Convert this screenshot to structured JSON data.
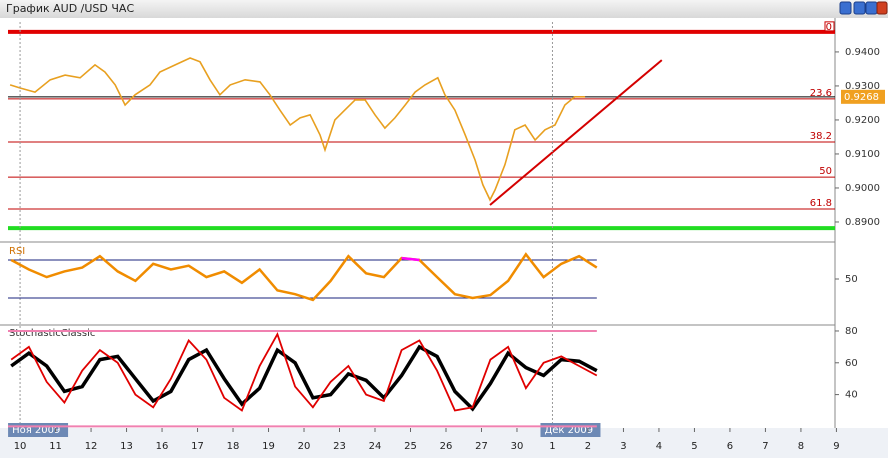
{
  "title": "График AUD /USD  ЧАС",
  "chart_data": [
    {
      "type": "line",
      "categories": [
        "10",
        "11",
        "12",
        "13",
        "16",
        "17",
        "18",
        "19",
        "20",
        "23",
        "24",
        "25",
        "26",
        "27",
        "30",
        "1",
        "2",
        "3",
        "4",
        "5",
        "6",
        "7",
        "8",
        "9"
      ],
      "month_labels": [
        "Ноя 2009",
        null,
        null,
        null,
        null,
        null,
        null,
        null,
        null,
        null,
        null,
        null,
        null,
        null,
        null,
        "Дек 2009",
        null,
        null,
        null,
        null,
        null,
        null,
        null,
        null
      ],
      "xlim": [
        -0.34,
        22.96
      ],
      "ylim": [
        0.8847,
        0.9488
      ],
      "yticks": [
        {
          "value": 0.89,
          "label": "0.8900"
        },
        {
          "value": 0.9,
          "label": "0.9000"
        },
        {
          "value": 0.91,
          "label": "0.9100"
        },
        {
          "value": 0.92,
          "label": "0.9200"
        },
        {
          "value": 0.93,
          "label": "0.9300"
        },
        {
          "value": 0.94,
          "label": "0.9400"
        }
      ],
      "color": "#e8a020",
      "x": [
        -0.28,
        0,
        0.42,
        0.85,
        1.27,
        1.69,
        2.11,
        2.39,
        2.68,
        2.96,
        3.24,
        3.66,
        3.94,
        4.37,
        4.79,
        5.07,
        5.35,
        5.63,
        5.92,
        6.34,
        6.76,
        7.04,
        7.32,
        7.61,
        7.89,
        8.17,
        8.45,
        8.59,
        8.87,
        9.15,
        9.44,
        9.72,
        10.0,
        10.28,
        10.56,
        10.85,
        11.13,
        11.41,
        11.77,
        11.97,
        12.25,
        12.54,
        12.82,
        13.04,
        13.24,
        13.38,
        13.66,
        13.94,
        14.23,
        14.51,
        14.79,
        15.07,
        15.35,
        15.63,
        15.92
      ],
      "values": [
        0.9303,
        0.9294,
        0.9282,
        0.9318,
        0.9332,
        0.9324,
        0.9362,
        0.9341,
        0.9303,
        0.9244,
        0.9274,
        0.9303,
        0.9341,
        0.9362,
        0.9382,
        0.9371,
        0.9318,
        0.9274,
        0.9303,
        0.9318,
        0.9312,
        0.9274,
        0.9229,
        0.9185,
        0.9206,
        0.9215,
        0.9156,
        0.9112,
        0.92,
        0.9229,
        0.9259,
        0.9259,
        0.9215,
        0.9176,
        0.9206,
        0.9244,
        0.9282,
        0.9303,
        0.9324,
        0.9274,
        0.9229,
        0.9156,
        0.9082,
        0.9009,
        0.8965,
        0.8994,
        0.9068,
        0.9171,
        0.9185,
        0.9141,
        0.9171,
        0.9185,
        0.9244,
        0.9268,
        0.9268
      ],
      "fib_levels": [
        {
          "label": "0",
          "value": 0.9459,
          "color": "#e00000"
        },
        {
          "label": "23.6",
          "value": 0.9262,
          "color": "#c00000"
        },
        {
          "label": "38.2",
          "value": 0.9135,
          "color": "#c00000"
        },
        {
          "label": "50",
          "value": 0.9032,
          "color": "#c00000"
        },
        {
          "label": "61.8",
          "value": 0.8938,
          "color": "#c00000"
        },
        {
          "label": null,
          "value": 0.8882,
          "color": "#22dd22"
        }
      ],
      "last_price": {
        "value": 0.9268,
        "label": "0.9268"
      },
      "trendline": {
        "x": [
          13.24,
          18.08
        ],
        "values": [
          0.895,
          0.9376
        ],
        "color": "#d40000"
      }
    },
    {
      "type": "line",
      "label": "RSI",
      "x": [
        -0.25,
        0.25,
        0.75,
        1.25,
        1.75,
        2.25,
        2.75,
        3.25,
        3.75,
        4.25,
        4.75,
        5.25,
        5.75,
        6.25,
        6.75,
        7.25,
        7.75,
        8.25,
        8.75,
        9.25,
        9.75,
        10.25,
        10.75,
        11.25,
        11.75,
        12.25,
        12.75,
        13.25,
        13.75,
        14.25,
        14.75,
        15.25,
        15.75,
        16.25
      ],
      "values": [
        70,
        60,
        52,
        58,
        62,
        74,
        58,
        48,
        66,
        60,
        64,
        52,
        58,
        46,
        60,
        38,
        34,
        28,
        48,
        74,
        56,
        52,
        72,
        70,
        52,
        34,
        30,
        33,
        48,
        76,
        52,
        66,
        74,
        62
      ],
      "ylim": [
        4.7,
        85.8
      ],
      "yticks": [
        50
      ],
      "levels": [
        30,
        70
      ],
      "color": "#f08c00",
      "high_color": "#ff00ff",
      "low_color": "#22dd22"
    },
    {
      "type": "line",
      "label": "StochasticClassic",
      "x": [
        -0.25,
        0.25,
        0.75,
        1.25,
        1.75,
        2.25,
        2.75,
        3.25,
        3.75,
        4.25,
        4.75,
        5.25,
        5.75,
        6.25,
        6.75,
        7.25,
        7.75,
        8.25,
        8.75,
        9.25,
        9.75,
        10.25,
        10.75,
        11.25,
        11.75,
        12.25,
        12.75,
        13.25,
        13.75,
        14.25,
        14.75,
        15.25,
        15.75,
        16.25
      ],
      "series": [
        {
          "color": "#000000",
          "values": [
            58,
            66,
            58,
            42,
            45,
            62,
            64,
            50,
            36,
            42,
            62,
            68,
            50,
            34,
            44,
            68,
            60,
            38,
            40,
            53,
            49,
            38,
            52,
            70,
            64,
            42,
            31,
            47,
            66,
            57,
            52,
            62,
            61,
            55
          ]
        },
        {
          "color": "#e00000",
          "values": [
            62,
            70,
            48,
            35,
            55,
            68,
            60,
            40,
            32,
            50,
            74,
            62,
            38,
            30,
            58,
            78,
            45,
            32,
            48,
            58,
            40,
            36,
            68,
            74,
            55,
            30,
            32,
            62,
            70,
            44,
            60,
            64,
            58,
            52
          ]
        }
      ],
      "ylim": [
        19.0,
        82.5
      ],
      "yticks": [
        40,
        60,
        80
      ],
      "levels": [
        20,
        80
      ]
    }
  ]
}
